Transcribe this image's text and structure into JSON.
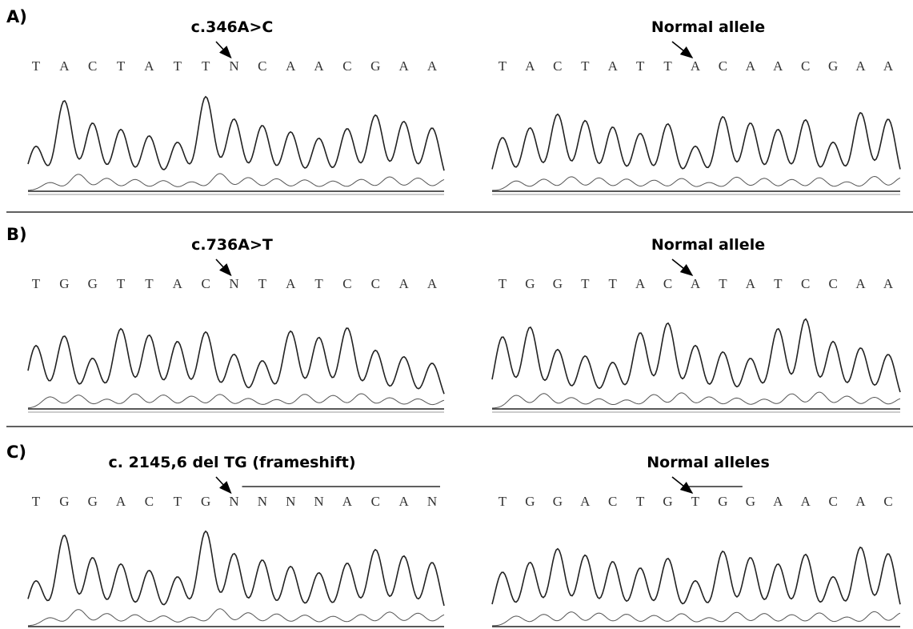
{
  "panels": [
    {
      "label": "A)",
      "mutant": {
        "annotation": "c.346A>C",
        "bases": [
          "T",
          "A",
          "C",
          "T",
          "A",
          "T",
          "T",
          "N",
          "C",
          "A",
          "A",
          "C",
          "G",
          "A",
          "A"
        ]
      },
      "normal": {
        "annotation": "Normal allele",
        "bases": [
          "T",
          "A",
          "C",
          "T",
          "A",
          "T",
          "T",
          "A",
          "C",
          "A",
          "A",
          "C",
          "G",
          "A",
          "A"
        ]
      }
    },
    {
      "label": "B)",
      "mutant": {
        "annotation": "c.736A>T",
        "bases": [
          "T",
          "G",
          "G",
          "T",
          "T",
          "A",
          "C",
          "N",
          "T",
          "A",
          "T",
          "C",
          "C",
          "A",
          "A"
        ]
      },
      "normal": {
        "annotation": "Normal allele",
        "bases": [
          "T",
          "G",
          "G",
          "T",
          "T",
          "A",
          "C",
          "A",
          "T",
          "A",
          "T",
          "C",
          "C",
          "A",
          "A"
        ]
      }
    },
    {
      "label": "C)",
      "mutant": {
        "annotation": "c. 2145,6 del TG  (frameshift)",
        "bases": [
          "T",
          "G",
          "G",
          "A",
          "C",
          "T",
          "G",
          "N",
          "N",
          "N",
          "N",
          "A",
          "C",
          "A",
          "N"
        ]
      },
      "normal": {
        "annotation": "Normal alleles",
        "bases": [
          "T",
          "G",
          "G",
          "A",
          "C",
          "T",
          "G",
          "T",
          "G",
          "G",
          "A",
          "A",
          "C",
          "A",
          "C"
        ]
      }
    }
  ]
}
